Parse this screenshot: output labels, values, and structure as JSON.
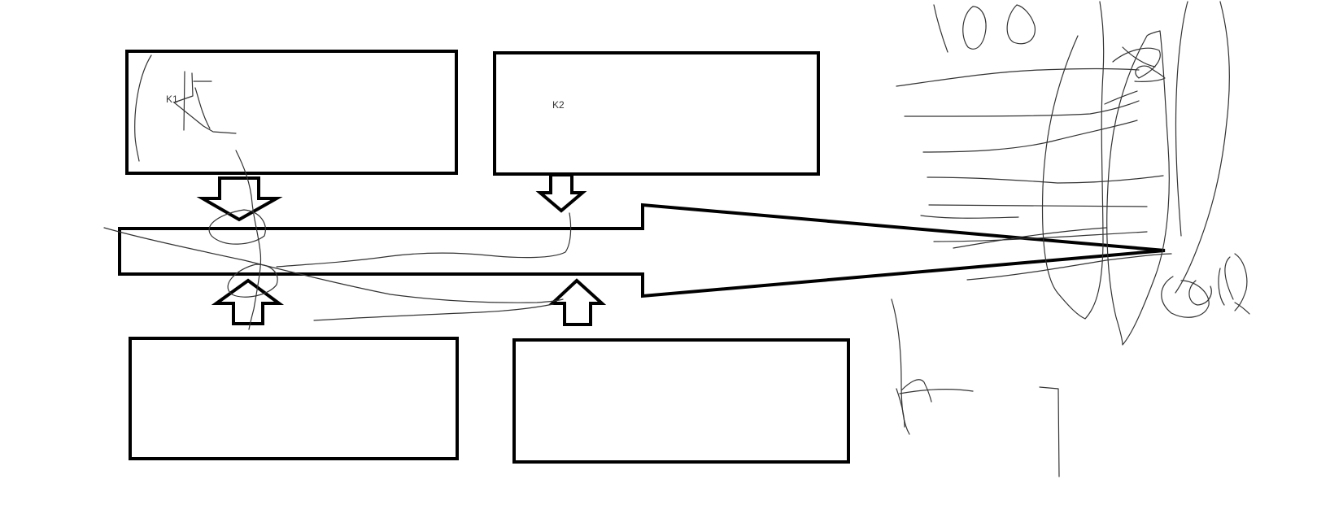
{
  "diagram": {
    "labels": {
      "k1": "K1",
      "k2": "K2"
    },
    "colors": {
      "outline": "#000000",
      "scribble": "#333333",
      "background": "#ffffff"
    }
  }
}
